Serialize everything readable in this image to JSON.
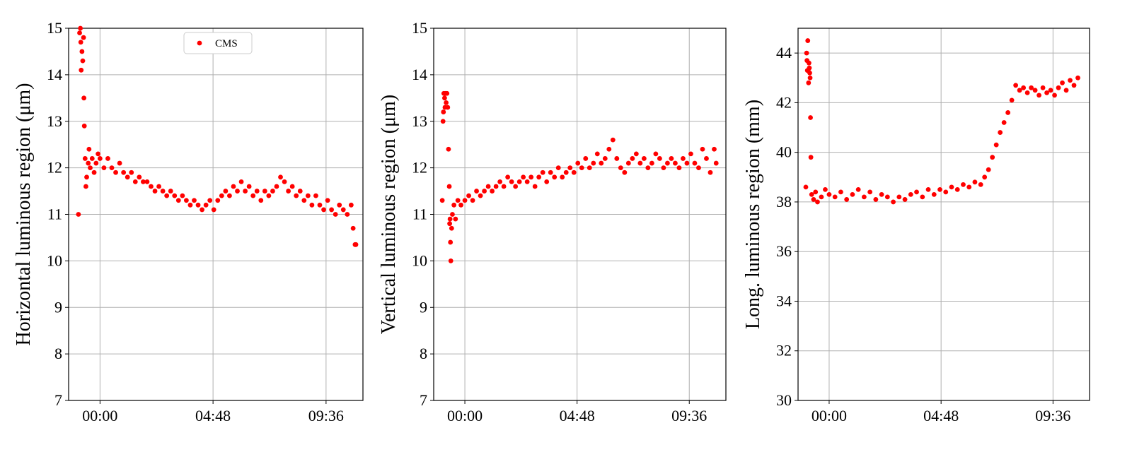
{
  "chart_data": [
    {
      "type": "scatter",
      "xlabel": "",
      "ylabel": "Horizontal luminous region (μm)",
      "ylim": [
        7,
        15
      ],
      "yticks": [
        7,
        8,
        9,
        10,
        11,
        12,
        13,
        14,
        15
      ],
      "xlim": [
        "-01:20",
        "11:10"
      ],
      "xticks": [
        "00:00",
        "04:48",
        "09:36"
      ],
      "grid": true,
      "legend": {
        "entries": [
          "CMS"
        ],
        "placement": "upper-center"
      },
      "colors": {
        "marker": "#ff0000"
      },
      "series": [
        {
          "name": "CMS",
          "points": [
            [
              "-00:55",
              11.0
            ],
            [
              "-00:52",
              14.9
            ],
            [
              "-00:50",
              15.0
            ],
            [
              "-00:49",
              14.7
            ],
            [
              "-00:48",
              14.1
            ],
            [
              "-00:46",
              14.5
            ],
            [
              "-00:44",
              14.3
            ],
            [
              "-00:42",
              14.8
            ],
            [
              "-00:41",
              13.5
            ],
            [
              "-00:40",
              12.9
            ],
            [
              "-00:38",
              12.2
            ],
            [
              "-00:36",
              11.6
            ],
            [
              "-00:34",
              11.8
            ],
            [
              "-00:30",
              12.1
            ],
            [
              "-00:28",
              12.4
            ],
            [
              "-00:25",
              12.0
            ],
            [
              "-00:20",
              12.2
            ],
            [
              "-00:15",
              11.9
            ],
            [
              "-00:10",
              12.1
            ],
            [
              "-00:05",
              12.3
            ],
            [
              "00:00",
              12.2
            ],
            [
              "00:10",
              12.0
            ],
            [
              "00:20",
              12.2
            ],
            [
              "00:30",
              12.0
            ],
            [
              "00:40",
              11.9
            ],
            [
              "00:50",
              12.1
            ],
            [
              "01:00",
              11.9
            ],
            [
              "01:10",
              11.8
            ],
            [
              "01:20",
              11.9
            ],
            [
              "01:30",
              11.7
            ],
            [
              "01:40",
              11.8
            ],
            [
              "01:50",
              11.7
            ],
            [
              "02:00",
              11.7
            ],
            [
              "02:10",
              11.6
            ],
            [
              "02:20",
              11.5
            ],
            [
              "02:30",
              11.6
            ],
            [
              "02:40",
              11.5
            ],
            [
              "02:50",
              11.4
            ],
            [
              "03:00",
              11.5
            ],
            [
              "03:10",
              11.4
            ],
            [
              "03:20",
              11.3
            ],
            [
              "03:30",
              11.4
            ],
            [
              "03:40",
              11.3
            ],
            [
              "03:50",
              11.2
            ],
            [
              "04:00",
              11.3
            ],
            [
              "04:10",
              11.2
            ],
            [
              "04:20",
              11.1
            ],
            [
              "04:30",
              11.2
            ],
            [
              "04:40",
              11.3
            ],
            [
              "04:50",
              11.1
            ],
            [
              "05:00",
              11.3
            ],
            [
              "05:10",
              11.4
            ],
            [
              "05:20",
              11.5
            ],
            [
              "05:30",
              11.4
            ],
            [
              "05:40",
              11.6
            ],
            [
              "05:50",
              11.5
            ],
            [
              "06:00",
              11.7
            ],
            [
              "06:10",
              11.5
            ],
            [
              "06:20",
              11.6
            ],
            [
              "06:30",
              11.4
            ],
            [
              "06:40",
              11.5
            ],
            [
              "06:50",
              11.3
            ],
            [
              "07:00",
              11.5
            ],
            [
              "07:10",
              11.4
            ],
            [
              "07:20",
              11.5
            ],
            [
              "07:30",
              11.6
            ],
            [
              "07:40",
              11.8
            ],
            [
              "07:50",
              11.7
            ],
            [
              "08:00",
              11.5
            ],
            [
              "08:10",
              11.6
            ],
            [
              "08:20",
              11.4
            ],
            [
              "08:30",
              11.5
            ],
            [
              "08:40",
              11.3
            ],
            [
              "08:50",
              11.4
            ],
            [
              "09:00",
              11.2
            ],
            [
              "09:10",
              11.4
            ],
            [
              "09:20",
              11.2
            ],
            [
              "09:30",
              11.1
            ],
            [
              "09:40",
              11.3
            ],
            [
              "09:50",
              11.1
            ],
            [
              "10:00",
              11.0
            ],
            [
              "10:10",
              11.2
            ],
            [
              "10:20",
              11.1
            ],
            [
              "10:30",
              11.0
            ],
            [
              "10:40",
              11.2
            ],
            [
              "10:45",
              10.7
            ],
            [
              "10:50",
              10.35
            ],
            [
              "10:52",
              10.35
            ]
          ]
        }
      ]
    },
    {
      "type": "scatter",
      "xlabel": "",
      "ylabel": "Vertical luminous region (μm)",
      "ylim": [
        7,
        15
      ],
      "yticks": [
        7,
        8,
        9,
        10,
        11,
        12,
        13,
        14,
        15
      ],
      "xlim": [
        "-01:20",
        "11:10"
      ],
      "xticks": [
        "00:00",
        "04:48",
        "09:36"
      ],
      "grid": true,
      "colors": {
        "marker": "#ff0000"
      },
      "series": [
        {
          "name": "CMS",
          "points": [
            [
              "-00:58",
              11.3
            ],
            [
              "-00:56",
              13.0
            ],
            [
              "-00:55",
              13.2
            ],
            [
              "-00:54",
              13.6
            ],
            [
              "-00:52",
              13.5
            ],
            [
              "-00:51",
              13.3
            ],
            [
              "-00:50",
              13.6
            ],
            [
              "-00:48",
              13.4
            ],
            [
              "-00:46",
              13.6
            ],
            [
              "-00:44",
              13.3
            ],
            [
              "-00:42",
              12.4
            ],
            [
              "-00:40",
              11.6
            ],
            [
              "-00:39",
              10.8
            ],
            [
              "-00:38",
              10.9
            ],
            [
              "-00:37",
              10.4
            ],
            [
              "-00:36",
              10.0
            ],
            [
              "-00:34",
              10.7
            ],
            [
              "-00:32",
              11.0
            ],
            [
              "-00:28",
              11.2
            ],
            [
              "-00:24",
              10.9
            ],
            [
              "-00:18",
              11.3
            ],
            [
              "-00:10",
              11.2
            ],
            [
              "00:00",
              11.3
            ],
            [
              "00:10",
              11.4
            ],
            [
              "00:20",
              11.3
            ],
            [
              "00:30",
              11.5
            ],
            [
              "00:40",
              11.4
            ],
            [
              "00:50",
              11.5
            ],
            [
              "01:00",
              11.6
            ],
            [
              "01:10",
              11.5
            ],
            [
              "01:20",
              11.6
            ],
            [
              "01:30",
              11.7
            ],
            [
              "01:40",
              11.6
            ],
            [
              "01:50",
              11.8
            ],
            [
              "02:00",
              11.7
            ],
            [
              "02:10",
              11.6
            ],
            [
              "02:20",
              11.7
            ],
            [
              "02:30",
              11.8
            ],
            [
              "02:40",
              11.7
            ],
            [
              "02:50",
              11.8
            ],
            [
              "03:00",
              11.6
            ],
            [
              "03:10",
              11.8
            ],
            [
              "03:20",
              11.9
            ],
            [
              "03:30",
              11.7
            ],
            [
              "03:40",
              11.9
            ],
            [
              "03:50",
              11.8
            ],
            [
              "04:00",
              12.0
            ],
            [
              "04:10",
              11.8
            ],
            [
              "04:20",
              11.9
            ],
            [
              "04:30",
              12.0
            ],
            [
              "04:40",
              11.9
            ],
            [
              "04:50",
              12.1
            ],
            [
              "05:00",
              12.0
            ],
            [
              "05:10",
              12.2
            ],
            [
              "05:20",
              12.0
            ],
            [
              "05:30",
              12.1
            ],
            [
              "05:40",
              12.3
            ],
            [
              "05:50",
              12.1
            ],
            [
              "06:00",
              12.2
            ],
            [
              "06:10",
              12.4
            ],
            [
              "06:20",
              12.6
            ],
            [
              "06:30",
              12.2
            ],
            [
              "06:40",
              12.0
            ],
            [
              "06:50",
              11.9
            ],
            [
              "07:00",
              12.1
            ],
            [
              "07:10",
              12.2
            ],
            [
              "07:20",
              12.3
            ],
            [
              "07:30",
              12.1
            ],
            [
              "07:40",
              12.2
            ],
            [
              "07:50",
              12.0
            ],
            [
              "08:00",
              12.1
            ],
            [
              "08:10",
              12.3
            ],
            [
              "08:20",
              12.2
            ],
            [
              "08:30",
              12.0
            ],
            [
              "08:40",
              12.1
            ],
            [
              "08:50",
              12.2
            ],
            [
              "09:00",
              12.1
            ],
            [
              "09:10",
              12.0
            ],
            [
              "09:20",
              12.2
            ],
            [
              "09:30",
              12.1
            ],
            [
              "09:40",
              12.3
            ],
            [
              "09:50",
              12.1
            ],
            [
              "10:00",
              12.0
            ],
            [
              "10:10",
              12.4
            ],
            [
              "10:20",
              12.2
            ],
            [
              "10:30",
              11.9
            ],
            [
              "10:40",
              12.4
            ],
            [
              "10:45",
              12.1
            ]
          ]
        }
      ]
    },
    {
      "type": "scatter",
      "xlabel": "",
      "ylabel": "Long. luminous region (mm)",
      "ylim": [
        30,
        45
      ],
      "yticks": [
        30,
        32,
        34,
        36,
        38,
        40,
        42,
        44
      ],
      "xlim": [
        "-01:20",
        "11:10"
      ],
      "xticks": [
        "00:00",
        "04:48",
        "09:36"
      ],
      "grid": true,
      "colors": {
        "marker": "#ff0000"
      },
      "series": [
        {
          "name": "CMS",
          "points": [
            [
              "-01:00",
              38.6
            ],
            [
              "-00:58",
              44.0
            ],
            [
              "-00:57",
              43.7
            ],
            [
              "-00:56",
              43.3
            ],
            [
              "-00:55",
              44.5
            ],
            [
              "-00:54",
              43.3
            ],
            [
              "-00:53",
              42.8
            ],
            [
              "-00:52",
              43.6
            ],
            [
              "-00:51",
              43.4
            ],
            [
              "-00:50",
              43.2
            ],
            [
              "-00:49",
              43.0
            ],
            [
              "-00:48",
              41.4
            ],
            [
              "-00:47",
              39.8
            ],
            [
              "-00:45",
              38.3
            ],
            [
              "-00:40",
              38.1
            ],
            [
              "-00:35",
              38.4
            ],
            [
              "-00:30",
              38.0
            ],
            [
              "-00:20",
              38.2
            ],
            [
              "-00:10",
              38.5
            ],
            [
              "00:00",
              38.3
            ],
            [
              "00:15",
              38.2
            ],
            [
              "00:30",
              38.4
            ],
            [
              "00:45",
              38.1
            ],
            [
              "01:00",
              38.3
            ],
            [
              "01:15",
              38.5
            ],
            [
              "01:30",
              38.2
            ],
            [
              "01:45",
              38.4
            ],
            [
              "02:00",
              38.1
            ],
            [
              "02:15",
              38.3
            ],
            [
              "02:30",
              38.2
            ],
            [
              "02:45",
              38.0
            ],
            [
              "03:00",
              38.2
            ],
            [
              "03:15",
              38.1
            ],
            [
              "03:30",
              38.3
            ],
            [
              "03:45",
              38.4
            ],
            [
              "04:00",
              38.2
            ],
            [
              "04:15",
              38.5
            ],
            [
              "04:30",
              38.3
            ],
            [
              "04:45",
              38.5
            ],
            [
              "05:00",
              38.4
            ],
            [
              "05:15",
              38.6
            ],
            [
              "05:30",
              38.5
            ],
            [
              "05:45",
              38.7
            ],
            [
              "06:00",
              38.6
            ],
            [
              "06:15",
              38.8
            ],
            [
              "06:30",
              38.7
            ],
            [
              "06:40",
              39.0
            ],
            [
              "06:50",
              39.3
            ],
            [
              "07:00",
              39.8
            ],
            [
              "07:10",
              40.3
            ],
            [
              "07:20",
              40.8
            ],
            [
              "07:30",
              41.2
            ],
            [
              "07:40",
              41.6
            ],
            [
              "07:50",
              42.1
            ],
            [
              "08:00",
              42.7
            ],
            [
              "08:10",
              42.5
            ],
            [
              "08:20",
              42.6
            ],
            [
              "08:30",
              42.4
            ],
            [
              "08:40",
              42.6
            ],
            [
              "08:50",
              42.5
            ],
            [
              "09:00",
              42.3
            ],
            [
              "09:10",
              42.6
            ],
            [
              "09:20",
              42.4
            ],
            [
              "09:30",
              42.5
            ],
            [
              "09:40",
              42.3
            ],
            [
              "09:50",
              42.6
            ],
            [
              "10:00",
              42.8
            ],
            [
              "10:10",
              42.5
            ],
            [
              "10:20",
              42.9
            ],
            [
              "10:30",
              42.7
            ],
            [
              "10:40",
              43.0
            ]
          ]
        }
      ]
    }
  ]
}
